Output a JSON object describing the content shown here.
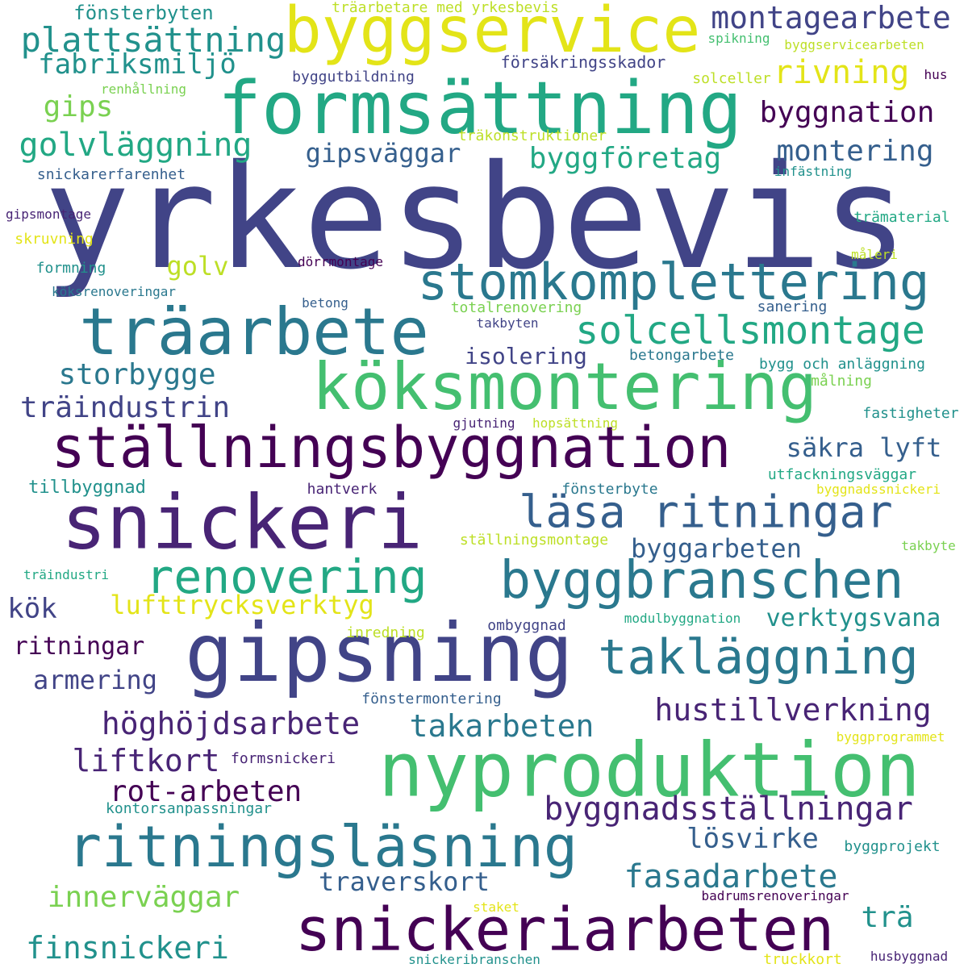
{
  "palette": [
    "#440154",
    "#482475",
    "#414487",
    "#355f8d",
    "#2a788e",
    "#21918c",
    "#22a884",
    "#44bf70",
    "#7ad151",
    "#bddf26",
    "#e3e418"
  ],
  "words": [
    "yrkesbevis",
    "byggservice",
    "formsättning",
    "köksmontering",
    "snickeri",
    "gipsning",
    "nyproduktion",
    "ställningsbyggnation",
    "träarbete",
    "stomkomplettering",
    "byggbranschen",
    "ritningsläsning",
    "snickeriarbeten",
    "läsa ritningar",
    "renovering",
    "takläggning",
    "solcellsmontage",
    "plattsättning",
    "montagearbete",
    "golvläggning",
    "byggnation",
    "montering",
    "byggföretag",
    "rivning",
    "fabriksmiljö",
    "gips",
    "gipsväggar",
    "storbygge",
    "träindustrin",
    "säkra lyft",
    "golv",
    "isolering",
    "byggarbeten",
    "lufttrycksverktyg",
    "kök",
    "verktygsvana",
    "ritningar",
    "armering",
    "hustillverkning",
    "höghöjdsarbete",
    "takarbeten",
    "liftkort",
    "rot-arbeten",
    "byggnadsställningar",
    "lösvirke",
    "fasadarbete",
    "traverskort",
    "innerväggar",
    "trä",
    "finsnickeri",
    "tillbyggnad",
    "fönsterbyten",
    "träarbetare med yrkesbevis",
    "försäkringsskador",
    "spikning",
    "byggservicearbeten",
    "byggutbildning",
    "solceller",
    "hus",
    "renhållning",
    "träkonstruktioner",
    "snickarerfarenhet",
    "infästning",
    "gipsmontage",
    "trämaterial",
    "skruvning",
    "formning",
    "dörrmontage",
    "måleri",
    "köksrenoveringar",
    "betong",
    "totalrenovering",
    "sanering",
    "takbyten",
    "betongarbete",
    "bygg och anläggning",
    "målning",
    "gjutning",
    "hopsättning",
    "fastigheter",
    "utfackningsväggar",
    "hantverk",
    "fönsterbyte",
    "byggnadssnickeri",
    "ställningsmontage",
    "takbyte",
    "träindustri",
    "modulbyggnation",
    "inredning",
    "ombyggnad",
    "fönstermontering",
    "byggprogrammet",
    "formsnickeri",
    "kontorsanpassningar",
    "byggprojekt",
    "badrumsrenoveringar",
    "staket",
    "snickeribranschen",
    "truckkort",
    "husbyggnad"
  ]
}
